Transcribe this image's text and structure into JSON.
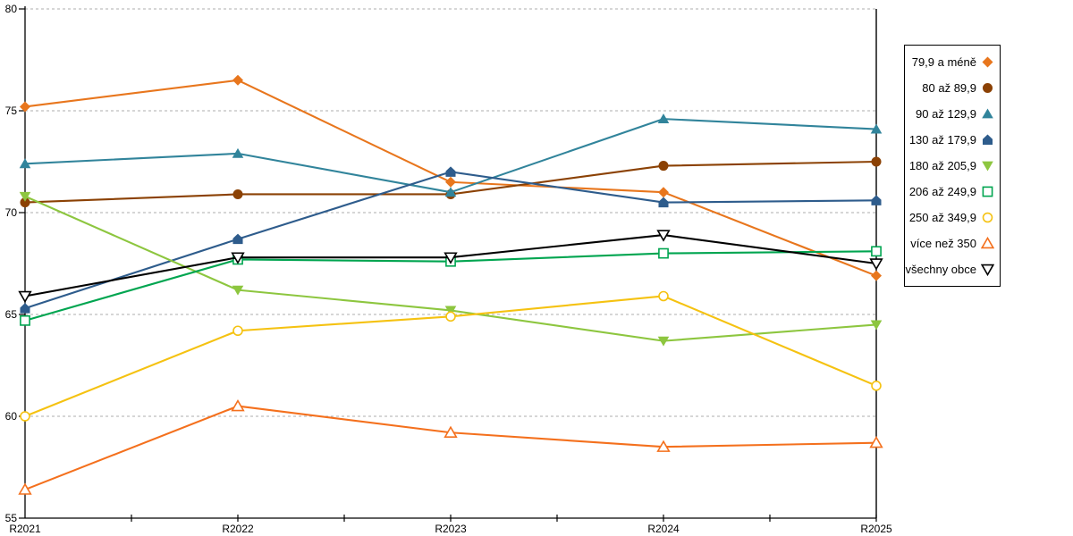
{
  "chart_data": {
    "type": "line",
    "title": "",
    "xlabel": "",
    "ylabel": "",
    "categories": [
      "R2021",
      "R2022",
      "R2023",
      "R2024",
      "R2025"
    ],
    "ylim": [
      55,
      80
    ],
    "yticks": [
      80,
      75,
      70,
      65,
      60,
      55
    ],
    "grid": "horizontal dashed at 60,65,70,75,80",
    "legend_position": "right",
    "series": [
      {
        "name": "79,9 a méně",
        "color": "#E8761D",
        "marker": "diamond",
        "fill": "filled",
        "values": [
          75.2,
          76.5,
          71.5,
          71.0,
          66.9
        ]
      },
      {
        "name": "80 až 89,9",
        "color": "#8B4104",
        "marker": "circle",
        "fill": "filled",
        "values": [
          70.5,
          70.9,
          70.9,
          72.3,
          72.5
        ]
      },
      {
        "name": "90 až 129,9",
        "color": "#31849B",
        "marker": "triangle-up",
        "fill": "filled",
        "values": [
          72.4,
          72.9,
          71.0,
          74.6,
          74.1
        ]
      },
      {
        "name": "130 až 179,9",
        "color": "#2E5C8C",
        "marker": "pentagon",
        "fill": "filled",
        "values": [
          65.3,
          68.7,
          72.0,
          70.5,
          70.6
        ]
      },
      {
        "name": "180 až 205,9",
        "color": "#8DC63F",
        "marker": "triangle-down",
        "fill": "filled",
        "values": [
          70.8,
          66.2,
          65.2,
          63.7,
          64.5
        ]
      },
      {
        "name": "206 až 249,9",
        "color": "#00A550",
        "marker": "square",
        "fill": "open",
        "values": [
          64.7,
          67.7,
          67.6,
          68.0,
          68.1
        ]
      },
      {
        "name": "250 až 349,9",
        "color": "#F5C211",
        "marker": "circle",
        "fill": "open",
        "values": [
          60.0,
          64.2,
          64.9,
          65.9,
          61.5
        ]
      },
      {
        "name": "více než 350",
        "color": "#F4701D",
        "marker": "triangle-up",
        "fill": "open",
        "values": [
          56.4,
          60.5,
          59.2,
          58.5,
          58.7
        ]
      },
      {
        "name": "všechny obce",
        "color": "#000000",
        "marker": "triangle-down",
        "fill": "open",
        "values": [
          65.9,
          67.8,
          67.8,
          68.9,
          67.5
        ]
      }
    ]
  },
  "layout_colors": {
    "background": "#FFFFFF",
    "gridline": "#ADADAD",
    "axis": "#000000",
    "legend_border": "#000000",
    "text": "#000000"
  }
}
